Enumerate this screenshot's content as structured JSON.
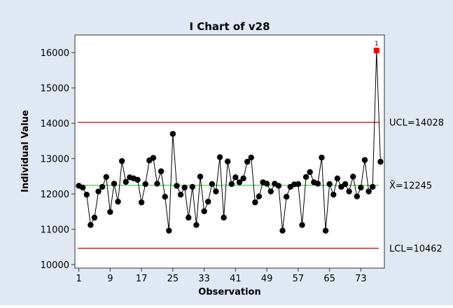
{
  "chart_data": {
    "type": "line",
    "title": "I Chart of v28",
    "xlabel": "Observation",
    "ylabel": "Individual Value",
    "xlim": [
      0,
      79
    ],
    "ylim": [
      9900,
      16500
    ],
    "x_ticks": [
      1,
      9,
      17,
      25,
      33,
      41,
      49,
      57,
      65,
      73
    ],
    "y_ticks": [
      10000,
      11000,
      12000,
      13000,
      14000,
      15000,
      16000
    ],
    "grid": false,
    "series": [
      {
        "values": [
          12230,
          12180,
          11980,
          11120,
          11330,
          12070,
          12200,
          12480,
          11490,
          12290,
          11780,
          12930,
          12340,
          12470,
          12440,
          12400,
          11760,
          12280,
          12950,
          13020,
          12290,
          12640,
          11920,
          10960,
          13700,
          12230,
          11980,
          12180,
          11330,
          12200,
          11120,
          12490,
          11510,
          11780,
          12280,
          12070,
          13040,
          11330,
          12920,
          12280,
          12470,
          12330,
          12440,
          12910,
          13030,
          11760,
          11930,
          12330,
          12290,
          12070,
          12290,
          12230,
          10960,
          11920,
          12200,
          12270,
          12280,
          11120,
          12480,
          12620,
          12330,
          12290,
          13030,
          10960,
          12280,
          11980,
          12440,
          12200,
          12280,
          12070,
          12490,
          11930,
          12180,
          12960,
          12070,
          12200,
          16060,
          12910
        ]
      }
    ],
    "limits": {
      "ucl": {
        "label": "UCL=14028",
        "value": 14028,
        "color": "#c00000"
      },
      "center": {
        "label": "X̄=12245",
        "value": 12245,
        "color": "#33cc33"
      },
      "lcl": {
        "label": "LCL=10462",
        "value": 10462,
        "color": "#c00000"
      }
    },
    "flags": [
      {
        "index": 77,
        "label": "1",
        "color": "#ff0000"
      }
    ],
    "colors": {
      "background": "#dfe8f3",
      "plot_area": "#ffffff",
      "series_line": "#000000",
      "point": "#000000"
    }
  }
}
